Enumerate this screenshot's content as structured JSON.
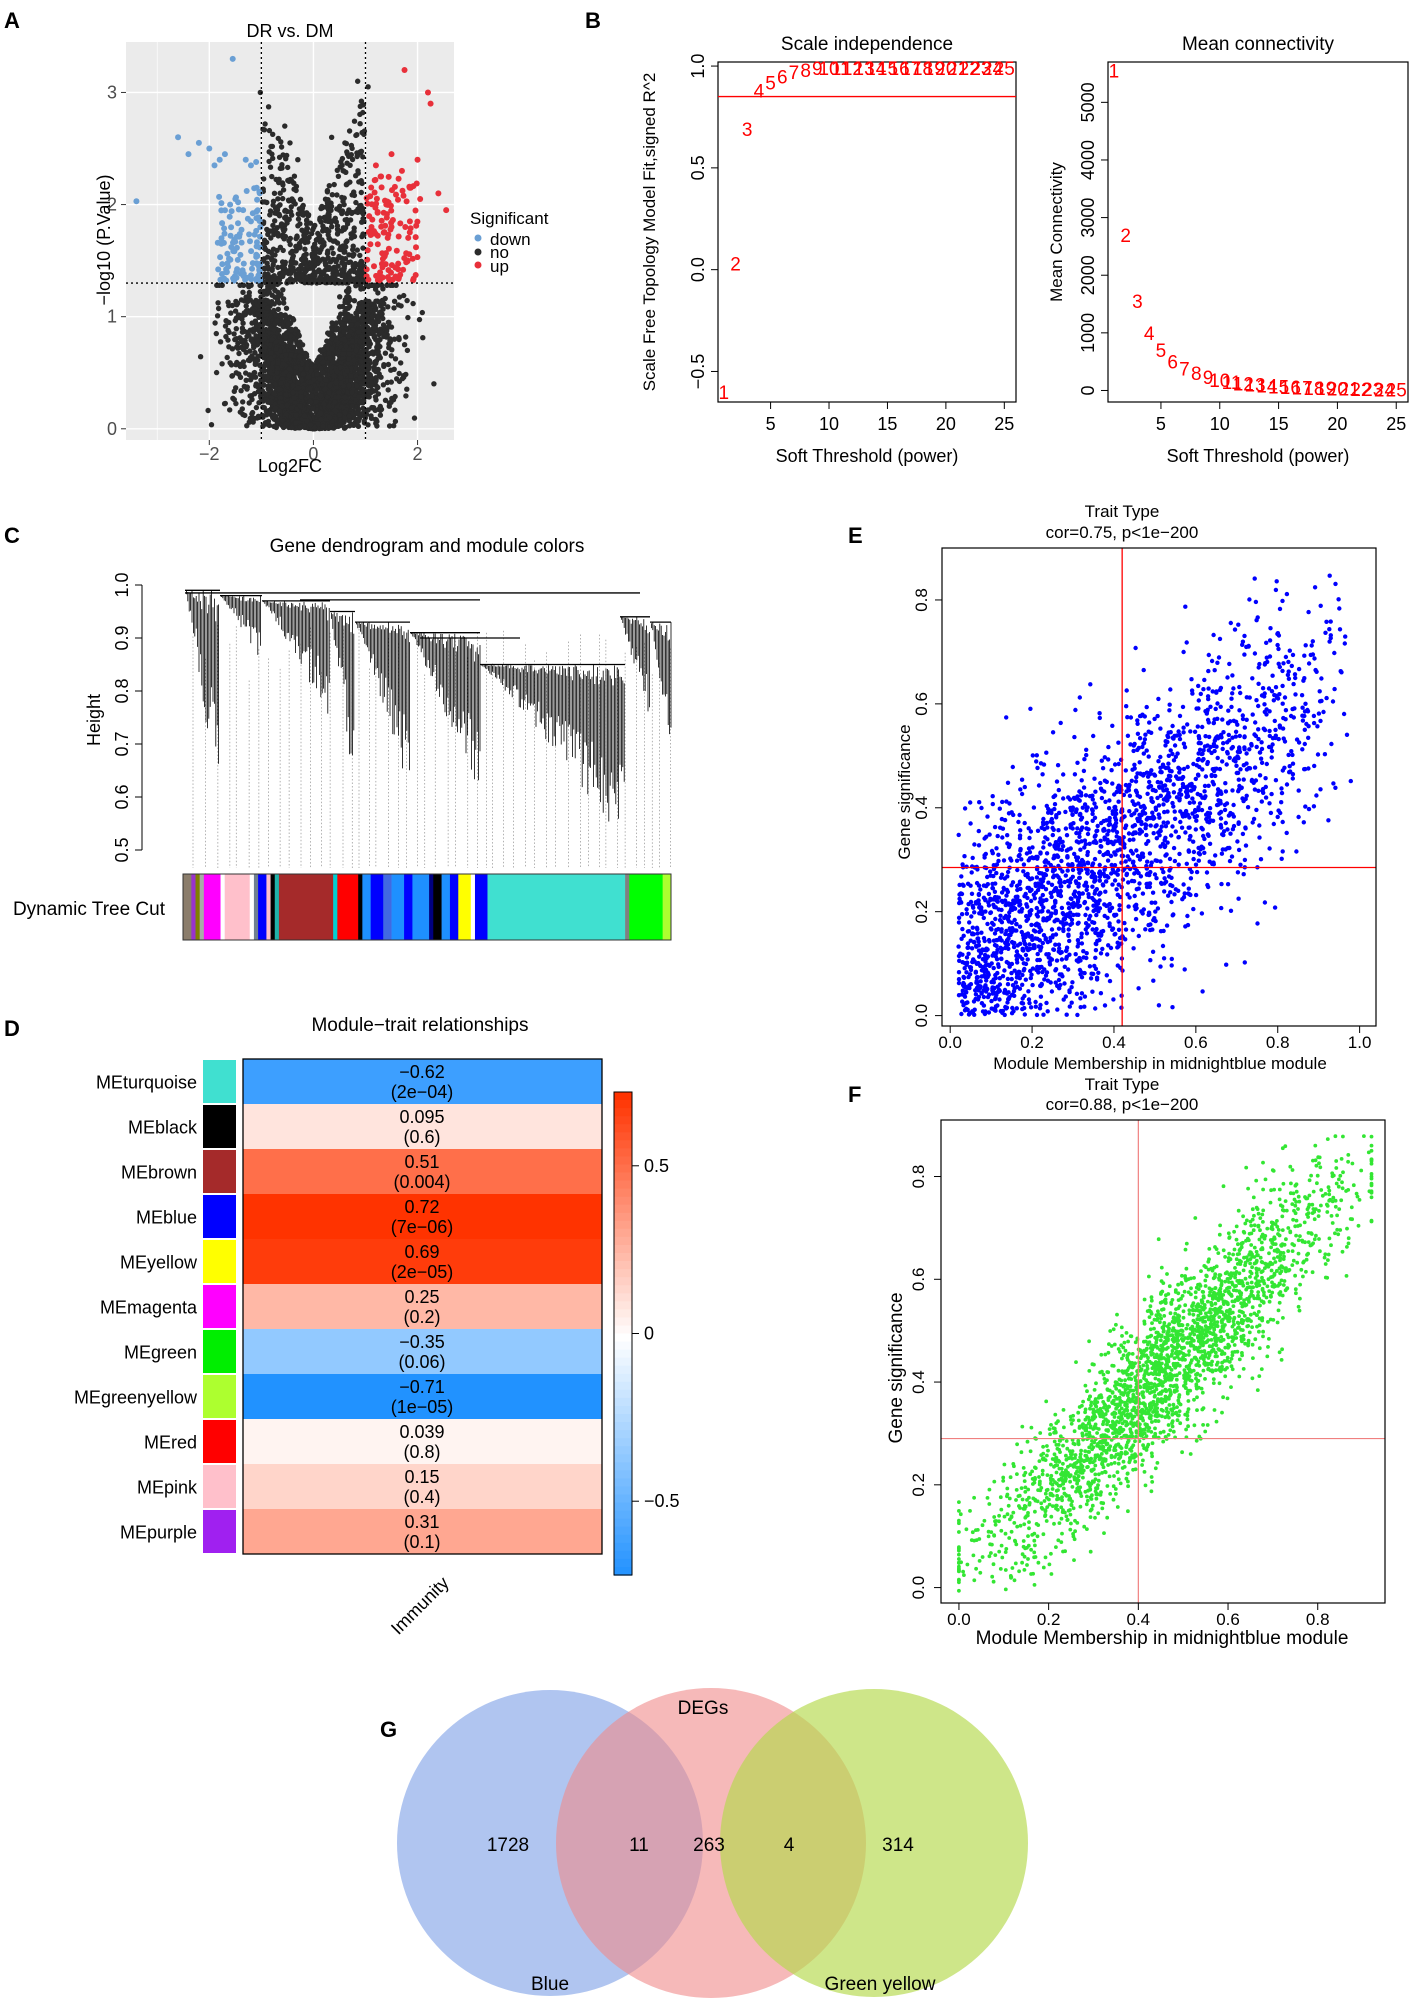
{
  "panel_labels": {
    "a": "A",
    "b": "B",
    "c": "C",
    "d": "D",
    "e": "E",
    "f": "F",
    "g": "G"
  },
  "colors": {
    "down": "#6a9fd4",
    "no": "#2b2b2b",
    "up": "#e8303a",
    "fit_red": "#ff0000",
    "scatter_blue": "#0000ff",
    "scatter_green": "#33e633",
    "heat_pos": "#ff3300",
    "heat_neg": "#1e90ff",
    "venn_blue": "#7b9fe6",
    "venn_pink": "#f08a8a",
    "venn_green": "#b3d94a"
  },
  "chart_data": [
    {
      "id": "volcano",
      "type": "scatter",
      "title": "DR vs. DM",
      "xlabel": "Log2FC",
      "ylabel": "−log10 (P.Value)",
      "xlim": [
        -3.6,
        2.7
      ],
      "ylim": [
        -0.1,
        3.45
      ],
      "xticks": [
        -2,
        0,
        2
      ],
      "xtick_labels": [
        "−2",
        "0",
        "2"
      ],
      "yticks": [
        0,
        1,
        2,
        3
      ],
      "ytick_labels": [
        "0",
        "1",
        "2",
        "3"
      ],
      "thresholds": {
        "x": [
          -1,
          1
        ],
        "y": 1.3
      },
      "legend": {
        "title": "Significant",
        "items": [
          "down",
          "no",
          "up"
        ],
        "placement": "right"
      },
      "down_points": [
        [
          -3.4,
          2.03
        ],
        [
          -2.6,
          2.6
        ],
        [
          -2.4,
          2.45
        ],
        [
          -2.2,
          2.55
        ],
        [
          -2.0,
          2.5
        ],
        [
          -1.9,
          2.35
        ],
        [
          -1.8,
          2.4
        ],
        [
          -1.7,
          2.45
        ],
        [
          -1.55,
          3.3
        ],
        [
          -1.5,
          2.05
        ],
        [
          -1.3,
          2.4
        ],
        [
          -1.2,
          2.35
        ],
        [
          -1.1,
          2.38
        ],
        [
          -1.6,
          2.0
        ],
        [
          -1.35,
          1.95
        ],
        [
          -1.2,
          1.85
        ]
      ],
      "up_points": [
        [
          1.2,
          2.35
        ],
        [
          1.3,
          2.25
        ],
        [
          1.5,
          2.45
        ],
        [
          1.7,
          2.3
        ],
        [
          1.75,
          3.2
        ],
        [
          1.85,
          2.15
        ],
        [
          2.0,
          2.4
        ],
        [
          2.05,
          2.05
        ],
        [
          1.4,
          2.0
        ],
        [
          1.5,
          1.8
        ],
        [
          1.35,
          1.75
        ],
        [
          2.2,
          3.0
        ],
        [
          2.25,
          2.9
        ],
        [
          2.4,
          2.1
        ],
        [
          2.55,
          1.95
        ]
      ],
      "no_extreme_points": [
        [
          -1.02,
          3.0
        ],
        [
          0.85,
          3.1
        ],
        [
          1.05,
          3.05
        ],
        [
          -0.55,
          2.7
        ],
        [
          -0.45,
          2.55
        ],
        [
          -0.3,
          2.4
        ],
        [
          0.35,
          2.6
        ],
        [
          0.55,
          2.35
        ],
        [
          -0.8,
          2.25
        ],
        [
          0.7,
          2.2
        ],
        [
          -0.65,
          1.9
        ],
        [
          0.5,
          1.95
        ]
      ],
      "n_down": 110,
      "n_up": 120
    },
    {
      "id": "scale_independence",
      "type": "scatter",
      "title": "Scale independence",
      "xlabel": "Soft Threshold (power)",
      "ylabel": "Scale Free Topology Model Fit,signed R^2",
      "xlim": [
        0.5,
        26
      ],
      "ylim": [
        -0.65,
        1.02
      ],
      "xticks": [
        5,
        10,
        15,
        20,
        25
      ],
      "yticks": [
        -0.5,
        0,
        0.5,
        1
      ],
      "ytick_labels": [
        "−0.5",
        "0.0",
        "0.5",
        "1.0"
      ],
      "hline": 0.85,
      "x": [
        1,
        2,
        3,
        4,
        5,
        6,
        7,
        8,
        9,
        10,
        11,
        12,
        13,
        14,
        15,
        16,
        17,
        18,
        19,
        20,
        21,
        22,
        23,
        24,
        25
      ],
      "y": [
        -0.6,
        0.03,
        0.69,
        0.88,
        0.92,
        0.95,
        0.97,
        0.98,
        0.99,
        0.99,
        0.99,
        0.99,
        0.99,
        0.99,
        0.99,
        0.99,
        0.99,
        0.99,
        0.99,
        0.99,
        0.99,
        0.99,
        0.99,
        0.99,
        0.99
      ]
    },
    {
      "id": "mean_connectivity",
      "type": "scatter",
      "title": "Mean connectivity",
      "xlabel": "Soft Threshold (power)",
      "ylabel": "Mean Connectivity",
      "xlim": [
        0.5,
        26
      ],
      "ylim": [
        -200,
        5700
      ],
      "xticks": [
        5,
        10,
        15,
        20,
        25
      ],
      "yticks": [
        0,
        1000,
        2000,
        3000,
        4000,
        5000
      ],
      "x": [
        1,
        2,
        3,
        4,
        5,
        6,
        7,
        8,
        9,
        10,
        11,
        12,
        13,
        14,
        15,
        16,
        17,
        18,
        19,
        20,
        21,
        22,
        23,
        24,
        25
      ],
      "y": [
        5550,
        2700,
        1550,
        1000,
        700,
        500,
        380,
        300,
        230,
        180,
        150,
        120,
        100,
        85,
        70,
        60,
        50,
        45,
        40,
        35,
        30,
        25,
        22,
        20,
        18
      ]
    },
    {
      "id": "dendrogram",
      "type": "dendrogram",
      "title": "Gene dendrogram and module colors",
      "ylabel": "Height",
      "ylim": [
        0.48,
        1.0
      ],
      "yticks": [
        0.5,
        0.6,
        0.7,
        0.8,
        0.9,
        1.0
      ],
      "ytick_labels": [
        "0.5",
        "0.6",
        "0.7",
        "0.8",
        "0.9",
        "1.0"
      ],
      "color_row_label": "Dynamic Tree Cut",
      "color_bar": [
        [
          "#8b7d6b",
          2
        ],
        [
          "#9932cc",
          1
        ],
        [
          "#808000",
          1
        ],
        [
          "#a9a9a9",
          1
        ],
        [
          "#ff00ff",
          4
        ],
        [
          "#ffffff",
          1
        ],
        [
          "#ffc0cb",
          6
        ],
        [
          "#ffffff",
          1
        ],
        [
          "#708090",
          1
        ],
        [
          "#0000ff",
          2
        ],
        [
          "#ffc0cb",
          1
        ],
        [
          "#000000",
          1
        ],
        [
          "#20b2aa",
          1
        ],
        [
          "#a52a2a",
          13
        ],
        [
          "#00ced1",
          1
        ],
        [
          "#ff0000",
          5
        ],
        [
          "#000000",
          1
        ],
        [
          "#1e90ff",
          2
        ],
        [
          "#0000ff",
          3
        ],
        [
          "#4169e1",
          2
        ],
        [
          "#1e90ff",
          3
        ],
        [
          "#0000ff",
          2
        ],
        [
          "#1e90ff",
          4
        ],
        [
          "#000080",
          1
        ],
        [
          "#000000",
          2
        ],
        [
          "#1e90ff",
          2
        ],
        [
          "#0000ff",
          2
        ],
        [
          "#ffff00",
          3
        ],
        [
          "#ffffff",
          1
        ],
        [
          "#0000ff",
          3
        ],
        [
          "#40e0d0",
          33
        ],
        [
          "#808080",
          1
        ],
        [
          "#00ff00",
          8
        ],
        [
          "#adff2f",
          2
        ]
      ]
    },
    {
      "id": "module_trait",
      "type": "heatmap",
      "title": "Module−trait relationships",
      "column": "Immunity",
      "modules": [
        "MEturquoise",
        "MEblack",
        "MEbrown",
        "MEblue",
        "MEyellow",
        "MEmagenta",
        "MEgreen",
        "MEgreenyellow",
        "MEred",
        "MEpink",
        "MEpurple"
      ],
      "module_colors": [
        "#40e0d0",
        "#000000",
        "#a52a2a",
        "#0000ff",
        "#ffff00",
        "#ff00ff",
        "#00ee00",
        "#adff2f",
        "#ff0000",
        "#ffc0cb",
        "#a020f0"
      ],
      "cor": [
        -0.62,
        0.095,
        0.51,
        0.72,
        0.69,
        0.25,
        -0.35,
        -0.71,
        0.039,
        0.15,
        0.31
      ],
      "cor_labels": [
        "−0.62",
        "0.095",
        "0.51",
        "0.72",
        "0.69",
        "0.25",
        "−0.35",
        "−0.71",
        "0.039",
        "0.15",
        "0.31"
      ],
      "pvalues": [
        "(2e−04)",
        "(0.6)",
        "(0.004)",
        "(7e−06)",
        "(2e−05)",
        "(0.2)",
        "(0.06)",
        "(1e−05)",
        "(0.8)",
        "(0.4)",
        "(0.1)"
      ],
      "color_scale": {
        "min": -0.72,
        "max": 0.72,
        "ticks": [
          0.5,
          0,
          -0.5
        ],
        "tick_labels": [
          "0.5",
          "0",
          "−0.5"
        ]
      }
    },
    {
      "id": "mm_gs_midnightblue",
      "type": "scatter",
      "title": "Trait Type",
      "subtitle": "cor=0.75, p<1e−200",
      "xlabel": "Module Membership in midnightblue module",
      "ylabel": "Gene significance",
      "xlim": [
        -0.02,
        1.04
      ],
      "ylim": [
        -0.02,
        0.9
      ],
      "xticks": [
        0,
        0.2,
        0.4,
        0.6,
        0.8,
        1
      ],
      "xtick_labels": [
        "0.0",
        "0.2",
        "0.4",
        "0.6",
        "0.8",
        "1.0"
      ],
      "yticks": [
        0,
        0.2,
        0.4,
        0.6,
        0.8
      ],
      "ytick_labels": [
        "0.0",
        "0.2",
        "0.4",
        "0.6",
        "0.8"
      ],
      "ref_lines": {
        "x": 0.42,
        "y": 0.285
      },
      "n_points": 2600,
      "slope": 0.66,
      "intercept": 0.04,
      "x_mode": 0.9
    },
    {
      "id": "mm_gs_second",
      "type": "scatter",
      "title": "Trait Type",
      "subtitle": "cor=0.88, p<1e−200",
      "xlabel": "Module Membership in midnightblue module",
      "ylabel": "Gene significance",
      "xlim": [
        -0.04,
        0.95
      ],
      "ylim": [
        -0.03,
        0.91
      ],
      "xticks": [
        0,
        0.2,
        0.4,
        0.6,
        0.8
      ],
      "xtick_labels": [
        "0.0",
        "0.2",
        "0.4",
        "0.6",
        "0.8"
      ],
      "yticks": [
        0,
        0.2,
        0.4,
        0.6,
        0.8
      ],
      "ytick_labels": [
        "0.0",
        "0.2",
        "0.4",
        "0.6",
        "0.8"
      ],
      "ref_lines": {
        "x": 0.4,
        "y": 0.29
      },
      "n_points": 2600,
      "slope": 0.88,
      "intercept": 0.02
    },
    {
      "id": "venn",
      "type": "venn",
      "sets": [
        "Blue",
        "DEGs",
        "Green yellow"
      ],
      "regions": {
        "blue_only": "1728",
        "blue_degs": "11",
        "degs_only": "263",
        "degs_greenyellow": "4",
        "greenyellow_only": "314"
      }
    }
  ]
}
